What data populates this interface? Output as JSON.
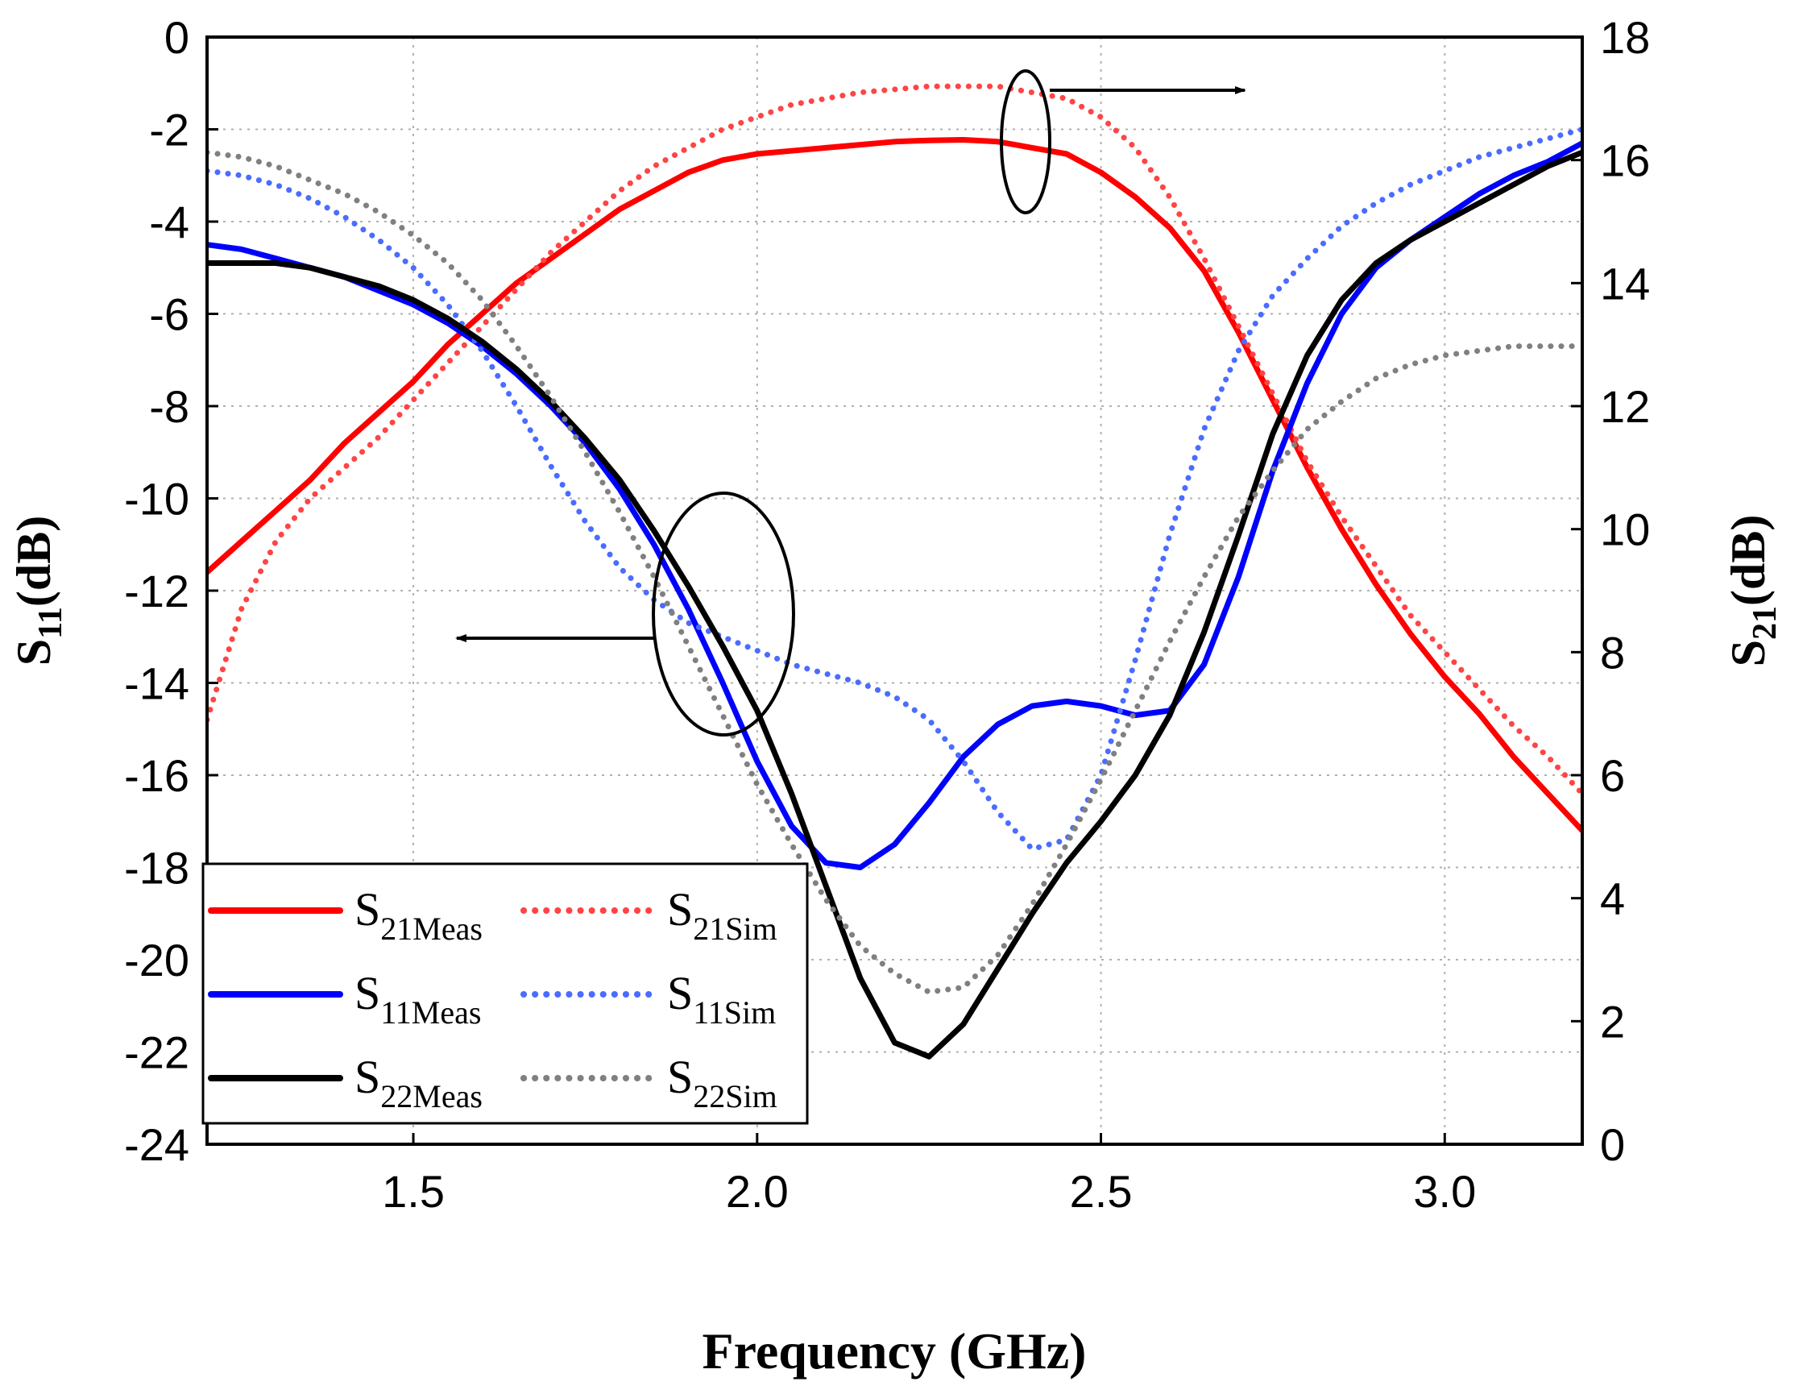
{
  "chart_data": {
    "type": "line",
    "xlabel": "Frequency (GHz)",
    "ylabel_left": {
      "main": "S",
      "sub": "11",
      "tail": "(dB)"
    },
    "ylabel_right": {
      "main": "S",
      "sub": "21",
      "tail": "(dB)"
    },
    "xlim": [
      1.2,
      3.2
    ],
    "ylim_left": [
      -24,
      0
    ],
    "ylim_right": [
      0,
      18
    ],
    "x_ticks": [
      "1.5",
      "2.0",
      "2.5",
      "3.0"
    ],
    "x_tick_values": [
      1.5,
      2.0,
      2.5,
      3.0
    ],
    "y_left_ticks": [
      "0",
      "-2",
      "-4",
      "-6",
      "-8",
      "-10",
      "-12",
      "-14",
      "-16",
      "-18",
      "-20",
      "-22",
      "-24"
    ],
    "y_left_tick_values": [
      0,
      -2,
      -4,
      -6,
      -8,
      -10,
      -12,
      -14,
      -16,
      -18,
      -20,
      -22,
      -24
    ],
    "y_right_ticks": [
      "18",
      "16",
      "14",
      "12",
      "10",
      "8",
      "6",
      "4",
      "2",
      "0"
    ],
    "y_right_tick_values": [
      18,
      16,
      14,
      12,
      10,
      8,
      6,
      4,
      2,
      0
    ],
    "grid": true,
    "legend_position": "bottom-left",
    "series": [
      {
        "name": "S21Meas",
        "label_main": "S",
        "label_sub": "21Meas",
        "axis": "right",
        "style": "solid",
        "color": "#ff0000",
        "x": [
          1.2,
          1.25,
          1.3,
          1.35,
          1.4,
          1.45,
          1.5,
          1.55,
          1.6,
          1.65,
          1.7,
          1.75,
          1.8,
          1.85,
          1.9,
          1.95,
          2.0,
          2.05,
          2.1,
          2.15,
          2.2,
          2.25,
          2.3,
          2.35,
          2.4,
          2.45,
          2.5,
          2.55,
          2.6,
          2.65,
          2.7,
          2.75,
          2.8,
          2.85,
          2.9,
          2.95,
          3.0,
          3.05,
          3.1,
          3.15,
          3.2
        ],
        "y": [
          9.3,
          9.8,
          10.3,
          10.8,
          11.4,
          11.9,
          12.4,
          13.0,
          13.5,
          14.0,
          14.4,
          14.8,
          15.2,
          15.5,
          15.8,
          16.0,
          16.1,
          16.15,
          16.2,
          16.25,
          16.3,
          16.32,
          16.33,
          16.3,
          16.2,
          16.1,
          15.8,
          15.4,
          14.9,
          14.2,
          13.2,
          12.1,
          11.0,
          10.0,
          9.1,
          8.3,
          7.6,
          7.0,
          6.3,
          5.7,
          5.1
        ]
      },
      {
        "name": "S21Sim",
        "label_main": "S",
        "label_sub": "21Sim",
        "axis": "right",
        "style": "dotted",
        "color": "#ff4444",
        "x": [
          1.2,
          1.25,
          1.3,
          1.35,
          1.4,
          1.45,
          1.5,
          1.55,
          1.6,
          1.65,
          1.7,
          1.75,
          1.8,
          1.85,
          1.9,
          1.95,
          2.0,
          2.05,
          2.1,
          2.15,
          2.2,
          2.25,
          2.3,
          2.35,
          2.4,
          2.45,
          2.5,
          2.55,
          2.6,
          2.65,
          2.7,
          2.75,
          2.8,
          2.85,
          2.9,
          2.95,
          3.0,
          3.05,
          3.1,
          3.15,
          3.2
        ],
        "y": [
          6.9,
          8.7,
          9.8,
          10.5,
          11.0,
          11.5,
          12.1,
          12.7,
          13.3,
          13.9,
          14.5,
          15.0,
          15.5,
          15.9,
          16.2,
          16.5,
          16.7,
          16.9,
          17.0,
          17.1,
          17.15,
          17.2,
          17.2,
          17.2,
          17.1,
          17.0,
          16.7,
          16.2,
          15.4,
          14.4,
          13.3,
          12.2,
          11.1,
          10.2,
          9.4,
          8.6,
          8.0,
          7.4,
          6.8,
          6.3,
          5.7
        ]
      },
      {
        "name": "S11Meas",
        "label_main": "S",
        "label_sub": "11Meas",
        "axis": "left",
        "style": "solid",
        "color": "#0000ff",
        "x": [
          1.2,
          1.25,
          1.3,
          1.35,
          1.4,
          1.45,
          1.5,
          1.55,
          1.6,
          1.65,
          1.7,
          1.75,
          1.8,
          1.85,
          1.9,
          1.95,
          2.0,
          2.05,
          2.1,
          2.15,
          2.2,
          2.25,
          2.3,
          2.35,
          2.4,
          2.45,
          2.5,
          2.55,
          2.6,
          2.65,
          2.7,
          2.75,
          2.8,
          2.85,
          2.9,
          2.95,
          3.0,
          3.05,
          3.1,
          3.15,
          3.2
        ],
        "y": [
          -4.5,
          -4.6,
          -4.8,
          -5.0,
          -5.2,
          -5.5,
          -5.8,
          -6.2,
          -6.7,
          -7.3,
          -8.0,
          -8.8,
          -9.8,
          -11.0,
          -12.4,
          -14.0,
          -15.7,
          -17.1,
          -17.9,
          -18.0,
          -17.5,
          -16.6,
          -15.6,
          -14.9,
          -14.5,
          -14.4,
          -14.5,
          -14.7,
          -14.6,
          -13.6,
          -11.7,
          -9.4,
          -7.5,
          -6.0,
          -5.0,
          -4.4,
          -3.9,
          -3.4,
          -3.0,
          -2.7,
          -2.3
        ]
      },
      {
        "name": "S11Sim",
        "label_main": "S",
        "label_sub": "11Sim",
        "axis": "left",
        "style": "dotted",
        "color": "#4a6cff",
        "x": [
          1.2,
          1.25,
          1.3,
          1.35,
          1.4,
          1.45,
          1.5,
          1.55,
          1.6,
          1.65,
          1.7,
          1.75,
          1.8,
          1.85,
          1.9,
          1.95,
          2.0,
          2.05,
          2.1,
          2.15,
          2.2,
          2.25,
          2.3,
          2.35,
          2.4,
          2.45,
          2.5,
          2.55,
          2.6,
          2.65,
          2.7,
          2.75,
          2.8,
          2.85,
          2.9,
          2.95,
          3.0,
          3.05,
          3.1,
          3.15,
          3.2
        ],
        "y": [
          -2.9,
          -3.0,
          -3.2,
          -3.5,
          -3.9,
          -4.4,
          -5.0,
          -5.8,
          -6.8,
          -8.0,
          -9.3,
          -10.5,
          -11.5,
          -12.2,
          -12.7,
          -13.0,
          -13.3,
          -13.6,
          -13.8,
          -14.0,
          -14.3,
          -14.8,
          -15.7,
          -16.8,
          -17.6,
          -17.4,
          -16.0,
          -13.5,
          -10.8,
          -8.5,
          -6.8,
          -5.6,
          -4.8,
          -4.1,
          -3.6,
          -3.2,
          -2.9,
          -2.6,
          -2.4,
          -2.2,
          -2.0
        ]
      },
      {
        "name": "S22Meas",
        "label_main": "S",
        "label_sub": "22Meas",
        "axis": "left",
        "style": "solid",
        "color": "#000000",
        "x": [
          1.2,
          1.25,
          1.3,
          1.35,
          1.4,
          1.45,
          1.5,
          1.55,
          1.6,
          1.65,
          1.7,
          1.75,
          1.8,
          1.85,
          1.9,
          1.95,
          2.0,
          2.05,
          2.1,
          2.15,
          2.2,
          2.25,
          2.3,
          2.35,
          2.4,
          2.45,
          2.5,
          2.55,
          2.6,
          2.65,
          2.7,
          2.75,
          2.8,
          2.85,
          2.9,
          2.95,
          3.0,
          3.05,
          3.1,
          3.15,
          3.2
        ],
        "y": [
          -4.9,
          -4.9,
          -4.9,
          -5.0,
          -5.2,
          -5.4,
          -5.7,
          -6.1,
          -6.6,
          -7.2,
          -7.9,
          -8.7,
          -9.6,
          -10.7,
          -11.9,
          -13.2,
          -14.6,
          -16.4,
          -18.4,
          -20.4,
          -21.8,
          -22.1,
          -21.4,
          -20.2,
          -19.0,
          -17.9,
          -17.0,
          -16.0,
          -14.7,
          -12.9,
          -10.8,
          -8.6,
          -6.9,
          -5.7,
          -4.9,
          -4.4,
          -4.0,
          -3.6,
          -3.2,
          -2.8,
          -2.5
        ]
      },
      {
        "name": "S22Sim",
        "label_main": "S",
        "label_sub": "22Sim",
        "axis": "left",
        "style": "dotted",
        "color": "#808080",
        "x": [
          1.2,
          1.25,
          1.3,
          1.35,
          1.4,
          1.45,
          1.5,
          1.55,
          1.6,
          1.65,
          1.7,
          1.75,
          1.8,
          1.85,
          1.9,
          1.95,
          2.0,
          2.05,
          2.1,
          2.15,
          2.2,
          2.25,
          2.3,
          2.35,
          2.4,
          2.45,
          2.5,
          2.55,
          2.6,
          2.65,
          2.7,
          2.75,
          2.8,
          2.85,
          2.9,
          2.95,
          3.0,
          3.05,
          3.1,
          3.15,
          3.2
        ],
        "y": [
          -2.5,
          -2.6,
          -2.8,
          -3.1,
          -3.4,
          -3.8,
          -4.3,
          -4.9,
          -5.7,
          -6.7,
          -7.8,
          -9.0,
          -10.3,
          -11.7,
          -13.2,
          -14.7,
          -16.2,
          -17.5,
          -18.7,
          -19.7,
          -20.3,
          -20.7,
          -20.6,
          -19.9,
          -18.8,
          -17.5,
          -16.1,
          -14.6,
          -13.1,
          -11.7,
          -10.4,
          -9.4,
          -8.5,
          -7.9,
          -7.4,
          -7.1,
          -6.9,
          -6.8,
          -6.7,
          -6.7,
          -6.7
        ]
      }
    ]
  }
}
